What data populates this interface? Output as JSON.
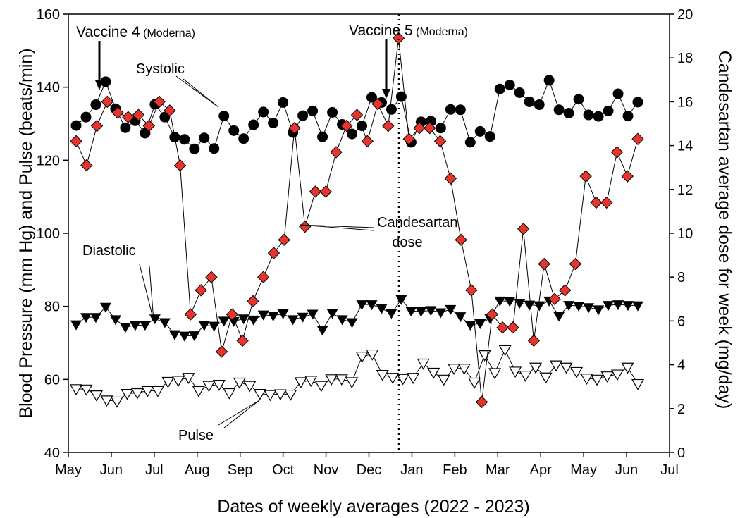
{
  "chart_data": {
    "type": "scatter",
    "xlabel": "Dates of weekly averages (2022 - 2023)",
    "ylabel": "Blood Pressure (mm Hg) and Pulse (beats/min)",
    "y2label": "Candesartan average dose for week (mg/day)",
    "x_ticks": [
      "May",
      "Jun",
      "Jul",
      "Aug",
      "Sep",
      "Oct",
      "Nov",
      "Dec",
      "Jan",
      "Feb",
      "Mar",
      "Apr",
      "May",
      "Jun",
      "Jul"
    ],
    "ylim": [
      40,
      160
    ],
    "y_ticks": [
      40,
      60,
      80,
      100,
      120,
      140,
      160
    ],
    "y2lim": [
      0,
      20
    ],
    "y2_ticks": [
      0,
      2,
      4,
      6,
      8,
      10,
      12,
      14,
      16,
      18,
      20
    ],
    "grid": false,
    "series": [
      {
        "name": "Systolic",
        "axis": "left",
        "marker": "filled-circle",
        "color": "#000000",
        "values": [
          129.5,
          131.8,
          135.2,
          141.5,
          134.1,
          128.9,
          130.8,
          127.4,
          135.3,
          131.8,
          126.3,
          125.7,
          123.1,
          126.1,
          123.2,
          132.1,
          128.1,
          125.9,
          129.7,
          133.2,
          130.2,
          135.8,
          127.6,
          132.2,
          133.5,
          126.4,
          133.1,
          129.8,
          127.2,
          129.4,
          137.2,
          135.8,
          133.9,
          137.4,
          124.9,
          130.5,
          130.7,
          128.8,
          133.9,
          133.8,
          124.9,
          127.9,
          126.5,
          139.5,
          140.6,
          138.5,
          136.0,
          135.2,
          141.9,
          133.8,
          132.9,
          136.7,
          132.4,
          132.0,
          133.5,
          138.2,
          132.1,
          135.9
        ]
      },
      {
        "name": "Diastolic",
        "axis": "left",
        "marker": "filled-triangle-down",
        "color": "#000000",
        "values": [
          75.0,
          77.0,
          77.0,
          79.8,
          76.4,
          74.3,
          74.8,
          74.9,
          76.6,
          75.6,
          72.3,
          71.9,
          72.0,
          74.8,
          74.6,
          76.0,
          75.9,
          76.6,
          76.3,
          77.7,
          77.4,
          78.0,
          76.4,
          77.1,
          77.9,
          73.5,
          78.1,
          76.4,
          75.6,
          80.5,
          80.5,
          79.4,
          78.1,
          81.9,
          78.7,
          78.6,
          78.9,
          78.3,
          79.2,
          77.2,
          74.9,
          75.3,
          76.7,
          81.5,
          81.4,
          80.9,
          80.4,
          80.2,
          81.5,
          77.3,
          80.3,
          80.1,
          79.7,
          79.1,
          80.3,
          80.5,
          80.3,
          80.2
        ]
      },
      {
        "name": "Pulse",
        "axis": "left",
        "marker": "open-triangle-down",
        "color": "#000000",
        "values": [
          57.4,
          57.3,
          55.7,
          54.3,
          54.0,
          56.1,
          56.3,
          56.9,
          56.9,
          59.4,
          59.7,
          60.5,
          56.9,
          58.3,
          58.6,
          56.3,
          59.2,
          58.3,
          56.1,
          55.8,
          56.0,
          55.9,
          59.3,
          59.7,
          58.3,
          60.1,
          60.1,
          59.3,
          66.3,
          66.9,
          61.3,
          60.5,
          60.2,
          60.5,
          64.4,
          61.9,
          60.0,
          63.0,
          63.0,
          59.2,
          66.7,
          61.8,
          68.1,
          62.2,
          61.1,
          63.3,
          60.6,
          63.9,
          63.3,
          62.1,
          60.3,
          60.0,
          60.9,
          61.4,
          63.3,
          58.8
        ]
      },
      {
        "name": "Candesartan dose",
        "axis": "right",
        "marker": "red-diamond",
        "color": "#e8352b",
        "values": [
          14.2,
          13.1,
          14.9,
          16.0,
          15.5,
          15.3,
          15.4,
          14.9,
          16.0,
          15.6,
          13.1,
          6.3,
          7.4,
          8.0,
          4.6,
          6.3,
          5.1,
          6.9,
          8.0,
          9.1,
          9.7,
          14.8,
          10.3,
          11.9,
          11.9,
          13.7,
          14.9,
          15.4,
          14.2,
          15.9,
          14.9,
          18.9,
          14.3,
          14.8,
          14.8,
          14.2,
          12.5,
          9.7,
          7.4,
          2.3,
          6.3,
          5.7,
          5.7,
          10.2,
          5.1,
          8.6,
          7.0,
          7.4,
          8.6,
          12.6,
          11.4,
          11.4,
          13.7,
          12.6,
          14.3
        ]
      }
    ],
    "annotations": [
      {
        "key": "vaccine4",
        "label": "Vaccine 4",
        "sub": "(Moderna)"
      },
      {
        "key": "vaccine5",
        "label": "Vaccine 5",
        "sub": "(Moderna)"
      },
      {
        "key": "systolic",
        "label": "Systolic"
      },
      {
        "key": "diastolic",
        "label": "Diastolic"
      },
      {
        "key": "pulse",
        "label": "Pulse"
      },
      {
        "key": "candesartan",
        "label": "Candesartan",
        "label2": "dose"
      }
    ]
  }
}
